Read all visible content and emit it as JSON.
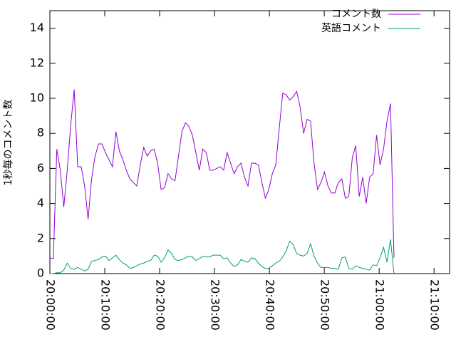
{
  "chart_data": {
    "type": "line",
    "ylabel": "1秒毎のコメント数",
    "x": [
      "20:00:00",
      "20:00:38",
      "20:01:16",
      "20:01:54",
      "20:02:32",
      "20:03:10",
      "20:03:48",
      "20:04:26",
      "20:05:04",
      "20:05:42",
      "20:06:20",
      "20:06:58",
      "20:07:36",
      "20:08:14",
      "20:08:52",
      "20:09:30",
      "20:10:08",
      "20:10:46",
      "20:11:24",
      "20:12:02",
      "20:12:40",
      "20:13:18",
      "20:13:56",
      "20:14:34",
      "20:15:12",
      "20:15:50",
      "20:16:28",
      "20:17:06",
      "20:17:44",
      "20:18:22",
      "20:19:00",
      "20:19:38",
      "20:20:16",
      "20:20:54",
      "20:21:32",
      "20:22:10",
      "20:22:48",
      "20:23:26",
      "20:24:04",
      "20:24:42",
      "20:25:20",
      "20:25:58",
      "20:26:36",
      "20:27:14",
      "20:27:52",
      "20:28:30",
      "20:29:08",
      "20:29:46",
      "20:30:24",
      "20:31:02",
      "20:31:40",
      "20:32:18",
      "20:32:56",
      "20:33:34",
      "20:34:12",
      "20:34:50",
      "20:35:28",
      "20:36:06",
      "20:36:44",
      "20:37:22",
      "20:38:00",
      "20:38:38",
      "20:39:16",
      "20:39:54",
      "20:40:32",
      "20:41:10",
      "20:41:48",
      "20:42:26",
      "20:43:04",
      "20:43:42",
      "20:44:20",
      "20:44:58",
      "20:45:36",
      "20:46:14",
      "20:46:52",
      "20:47:30",
      "20:48:08",
      "20:48:46",
      "20:49:24",
      "20:50:02",
      "20:50:40",
      "20:51:18",
      "20:51:56",
      "20:52:34",
      "20:53:12",
      "20:53:50",
      "20:54:28",
      "20:55:06",
      "20:55:44",
      "20:56:22",
      "20:57:00",
      "20:57:38",
      "20:58:16",
      "20:58:54",
      "20:59:32",
      "21:00:10",
      "21:00:48",
      "21:01:26",
      "21:02:04",
      "21:02:42"
    ],
    "series": [
      {
        "name": "コメント数",
        "color": "#9400d3",
        "values": [
          0.9,
          0.85,
          7.1,
          5.9,
          3.8,
          5.9,
          8.5,
          10.5,
          6.1,
          6.1,
          5.0,
          3.1,
          5.4,
          6.7,
          7.4,
          7.4,
          6.9,
          6.5,
          6.1,
          8.1,
          7.0,
          6.5,
          5.9,
          5.4,
          5.2,
          5.0,
          6.2,
          7.2,
          6.7,
          7.0,
          7.1,
          6.3,
          4.8,
          4.9,
          5.7,
          5.4,
          5.3,
          6.7,
          8.1,
          8.6,
          8.4,
          7.9,
          6.9,
          5.9,
          7.1,
          6.9,
          5.9,
          5.9,
          6.0,
          6.1,
          5.9,
          6.9,
          6.3,
          5.7,
          6.1,
          6.3,
          5.5,
          5.0,
          6.3,
          6.3,
          6.2,
          5.2,
          4.3,
          4.8,
          5.7,
          6.2,
          8.3,
          10.3,
          10.2,
          9.9,
          10.1,
          10.4,
          9.5,
          8.0,
          8.8,
          8.7,
          6.3,
          4.8,
          5.2,
          5.8,
          5.0,
          4.6,
          4.6,
          5.2,
          5.4,
          4.3,
          4.4,
          6.6,
          7.3,
          4.4,
          5.5,
          4.0,
          5.5,
          5.7,
          7.9,
          6.2,
          7.1,
          8.7,
          9.7,
          0.9
        ]
      },
      {
        "name": "英語コメント",
        "color": "#009e73",
        "values": [
          0,
          0,
          0.05,
          0.05,
          0.2,
          0.6,
          0.3,
          0.25,
          0.35,
          0.25,
          0.15,
          0.25,
          0.7,
          0.75,
          0.8,
          0.95,
          1.0,
          0.75,
          0.9,
          1.05,
          0.8,
          0.6,
          0.5,
          0.3,
          0.35,
          0.45,
          0.55,
          0.6,
          0.7,
          0.75,
          1.05,
          1.0,
          0.65,
          0.9,
          1.35,
          1.15,
          0.8,
          0.75,
          0.8,
          0.9,
          1.0,
          0.95,
          0.75,
          0.85,
          1.0,
          0.95,
          0.95,
          1.05,
          1.05,
          1.05,
          0.85,
          0.9,
          0.6,
          0.4,
          0.5,
          0.8,
          0.7,
          0.65,
          0.9,
          0.85,
          0.6,
          0.4,
          0.3,
          0.3,
          0.45,
          0.6,
          0.7,
          0.95,
          1.3,
          1.85,
          1.65,
          1.15,
          1.05,
          1.0,
          1.15,
          1.7,
          1.0,
          0.6,
          0.35,
          0.35,
          0.35,
          0.3,
          0.3,
          0.25,
          0.9,
          0.95,
          0.3,
          0.25,
          0.45,
          0.35,
          0.3,
          0.25,
          0.2,
          0.5,
          0.45,
          0.9,
          1.5,
          0.65,
          1.95,
          0
        ]
      }
    ],
    "xlim": [
      "20:00:00",
      "21:12:50"
    ],
    "xticks": [
      "20:00:00",
      "20:10:00",
      "20:20:00",
      "20:30:00",
      "20:40:00",
      "20:50:00",
      "21:00:00",
      "21:10:00"
    ],
    "ylim": [
      0,
      15
    ],
    "yticks": [
      0,
      2,
      4,
      6,
      8,
      10,
      12,
      14
    ],
    "legend": "top-right"
  }
}
